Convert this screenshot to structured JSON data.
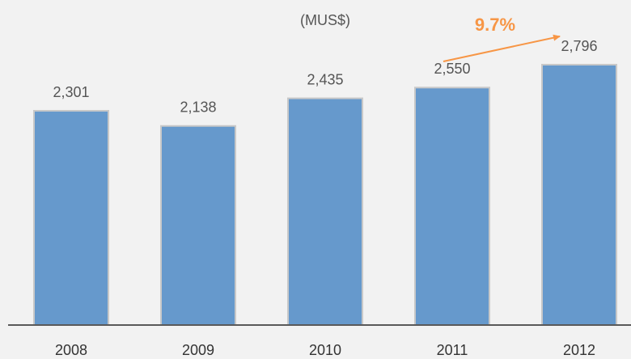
{
  "chart_data": {
    "type": "bar",
    "title": "(MUS$)",
    "categories": [
      "2008",
      "2009",
      "2010",
      "2011",
      "2012"
    ],
    "values": [
      2301,
      2138,
      2435,
      2550,
      2796
    ],
    "value_labels": [
      "2,301",
      "2,138",
      "2,435",
      "2,550",
      "2,796"
    ],
    "color": "#6699cc",
    "ylim": [
      0,
      3100
    ],
    "annotation": "9.7%",
    "annotation_color": "#f79646"
  }
}
